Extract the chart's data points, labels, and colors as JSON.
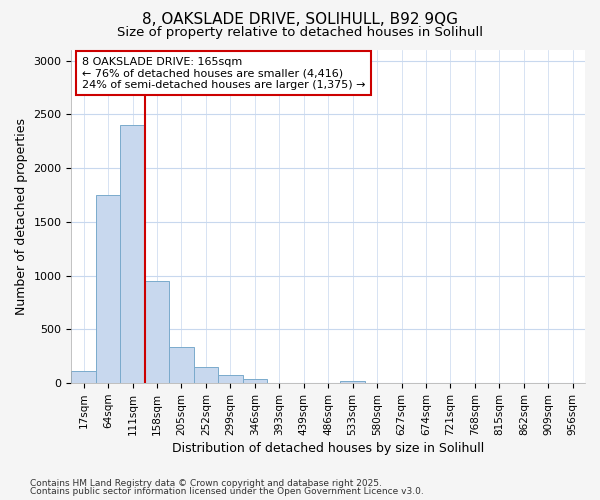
{
  "title_line1": "8, OAKSLADE DRIVE, SOLIHULL, B92 9QG",
  "title_line2": "Size of property relative to detached houses in Solihull",
  "xlabel": "Distribution of detached houses by size in Solihull",
  "ylabel": "Number of detached properties",
  "categories": [
    "17sqm",
    "64sqm",
    "111sqm",
    "158sqm",
    "205sqm",
    "252sqm",
    "299sqm",
    "346sqm",
    "393sqm",
    "439sqm",
    "486sqm",
    "533sqm",
    "580sqm",
    "627sqm",
    "674sqm",
    "721sqm",
    "768sqm",
    "815sqm",
    "862sqm",
    "909sqm",
    "956sqm"
  ],
  "values": [
    115,
    1750,
    2400,
    950,
    340,
    155,
    80,
    35,
    5,
    0,
    0,
    25,
    0,
    0,
    0,
    0,
    0,
    0,
    0,
    0,
    0
  ],
  "bar_color": "#c8d8ee",
  "bar_edge_color": "#7aaacc",
  "vline_color": "#cc0000",
  "annotation_text": "8 OAKSLADE DRIVE: 165sqm\n← 76% of detached houses are smaller (4,416)\n24% of semi-detached houses are larger (1,375) →",
  "annotation_box_color": "#ffffff",
  "annotation_box_edge_color": "#cc0000",
  "ylim": [
    0,
    3100
  ],
  "yticks": [
    0,
    500,
    1000,
    1500,
    2000,
    2500,
    3000
  ],
  "footnote1": "Contains HM Land Registry data © Crown copyright and database right 2025.",
  "footnote2": "Contains public sector information licensed under the Open Government Licence v3.0.",
  "bg_color": "#f5f5f5",
  "plot_bg_color": "#ffffff",
  "grid_color": "#c8d8ee"
}
